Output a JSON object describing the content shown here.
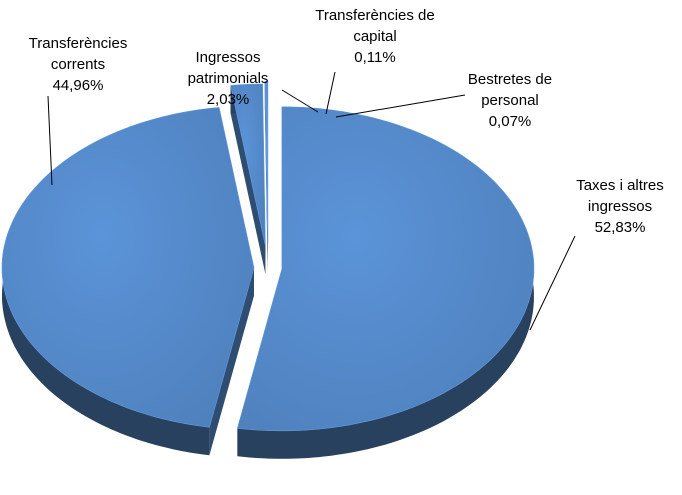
{
  "chart_data": {
    "type": "pie",
    "categories": [
      "Taxes i altres ingressos",
      "Transferències corrents",
      "Ingressos patrimonials",
      "Transferències de capital",
      "Bestretes de personal"
    ],
    "values": [
      52.83,
      44.96,
      2.03,
      0.11,
      0.07
    ],
    "value_labels": [
      "52,83%",
      "44,96%",
      "2,03%",
      "0,11%",
      "0,07%"
    ],
    "color": "#4f81bd"
  }
}
